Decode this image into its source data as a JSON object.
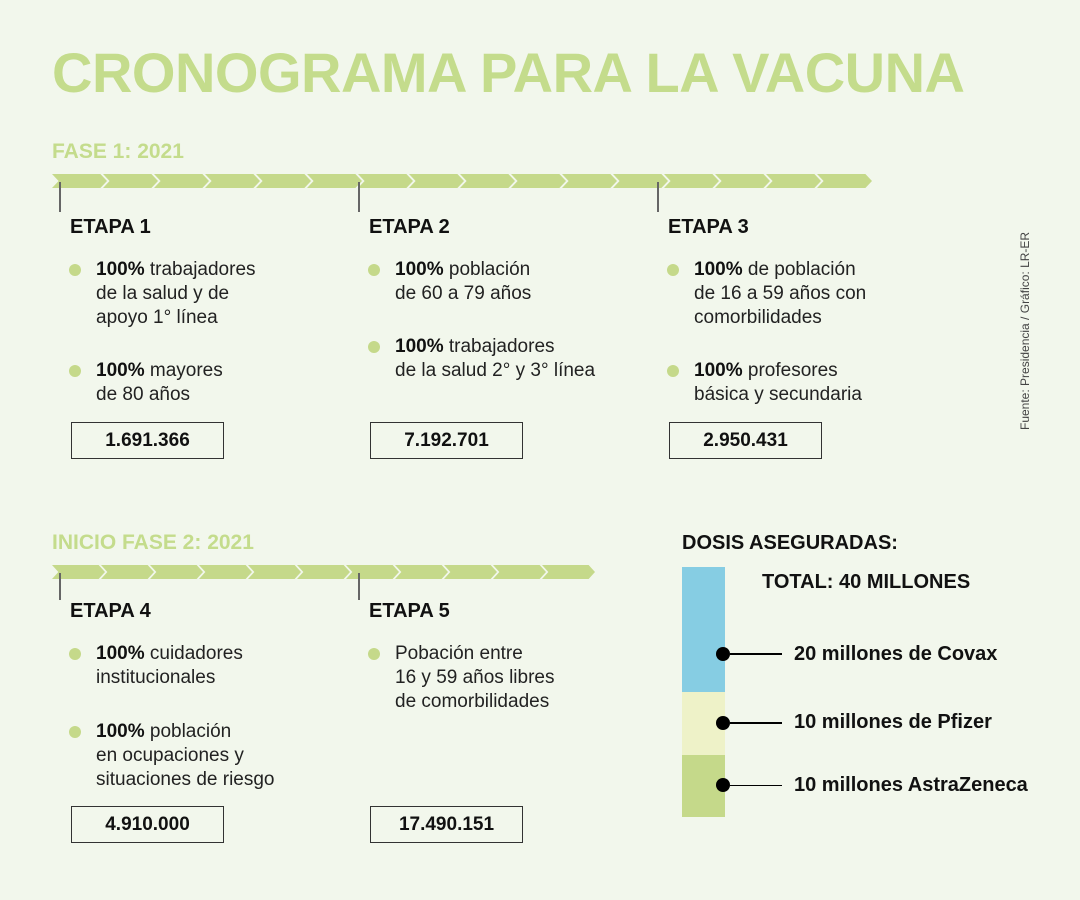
{
  "title": "CRONOGRAMA PARA LA VACUNA",
  "source": "Fuente: Presidencia  / Gráfico: LR-ER",
  "phase1": {
    "label": "FASE 1: 2021",
    "etapas": [
      {
        "label": "ETAPA 1",
        "items": [
          {
            "bold": "100%",
            "text": " trabajadores\nde la salud y de\napoyo 1° línea"
          },
          {
            "bold": "100%",
            "text": " mayores\nde 80 años"
          }
        ],
        "total": "1.691.366"
      },
      {
        "label": "ETAPA 2",
        "items": [
          {
            "bold": "100%",
            "text": " población\nde 60 a 79 años"
          },
          {
            "bold": "100%",
            "text": " trabajadores\nde la salud 2° y 3° línea"
          }
        ],
        "total": "7.192.701"
      },
      {
        "label": "ETAPA 3",
        "items": [
          {
            "bold": "100%",
            "text": " de población\nde 16 a 59 años con\ncomorbilidades"
          },
          {
            "bold": "100%",
            "text": " profesores\nbásica y secundaria"
          }
        ],
        "total": "2.950.431"
      }
    ]
  },
  "phase2": {
    "label": "INICIO FASE 2: 2021",
    "etapas": [
      {
        "label": "ETAPA 4",
        "items": [
          {
            "bold": "100%",
            "text": " cuidadores\ninstitucionales"
          },
          {
            "bold": "100%",
            "text": " población\nen ocupaciones y\nsituaciones de riesgo"
          }
        ],
        "total": "4.910.000"
      },
      {
        "label": "ETAPA 5",
        "items": [
          {
            "bold": "",
            "text": "Pobación entre\n16 y 59 años libres\nde comorbilidades"
          }
        ],
        "total": "17.490.151"
      }
    ]
  },
  "dosis": {
    "heading": "DOSIS ASEGURADAS:",
    "total": "TOTAL: 40 MILLONES",
    "total_millions": 40,
    "segments": [
      {
        "label": "20 millones de Covax",
        "millions": 20,
        "color": "#86cde3"
      },
      {
        "label": "10 millones de Pfizer",
        "millions": 10,
        "color": "#eef2c8"
      },
      {
        "label": "10 millones AstraZeneca",
        "millions": 10,
        "color": "#c5d98a"
      }
    ]
  },
  "colors": {
    "background": "#f2f7ec",
    "accent_green": "#c5d98a",
    "title_green": "#c4dc8c"
  }
}
